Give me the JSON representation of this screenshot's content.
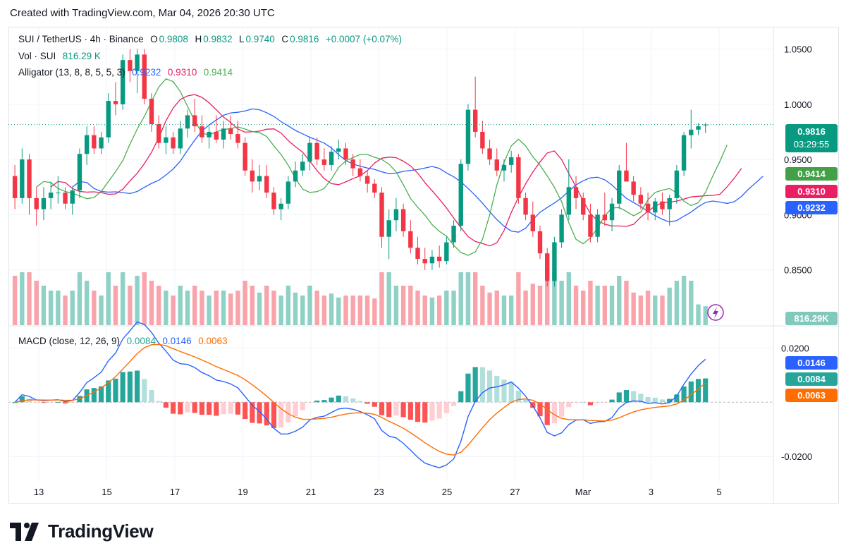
{
  "header": {
    "created": "Created with TradingView.com, Mar 04, 2026 20:30 UTC"
  },
  "legend": {
    "symbol": "SUI / TetherUS · 4h · Binance",
    "o_label": "O",
    "o": "0.9808",
    "h_label": "H",
    "h": "0.9832",
    "l_label": "L",
    "l": "0.9740",
    "c_label": "C",
    "c": "0.9816",
    "change": "+0.0007 (+0.07%)",
    "vol_label": "Vol · SUI",
    "vol": "816.29 K",
    "alligator_label": "Alligator (13, 8, 8, 5, 5, 3)",
    "alligator_jaw": "0.9232",
    "alligator_teeth": "0.9310",
    "alligator_lips": "0.9414",
    "macd_label": "MACD (close, 12, 26, 9)",
    "macd_hist": "0.0084",
    "macd_line": "0.0146",
    "macd_signal": "0.0063"
  },
  "badges": {
    "price": "0.9816",
    "countdown": "03:29:55",
    "lips": "0.9414",
    "teeth": "0.9310",
    "jaw": "0.9232",
    "volume": "816.29K",
    "macd_line": "0.0146",
    "macd_hist": "0.0084",
    "macd_signal": "0.0063"
  },
  "footer": {
    "brand": "TradingView"
  },
  "colors": {
    "up": "#089981",
    "down": "#f23645",
    "jaw": "#2962ff",
    "teeth": "#e91e63",
    "lips": "#4caf50",
    "signal": "#ff6d00"
  },
  "chart_data": {
    "type": "candlestick",
    "title": "SUI / TetherUS · 4h · Binance",
    "x_ticks": [
      "13",
      "15",
      "17",
      "19",
      "21",
      "23",
      "25",
      "27",
      "Mar",
      "3",
      "5"
    ],
    "y_ticks": [
      "1.0500",
      "1.0000",
      "0.9500",
      "0.9000",
      "0.8500"
    ],
    "ylim": [
      0.8,
      1.065
    ],
    "candles": [
      [
        0.935,
        0.945,
        0.905,
        0.915
      ],
      [
        0.915,
        0.96,
        0.91,
        0.95
      ],
      [
        0.95,
        0.955,
        0.9,
        0.915
      ],
      [
        0.915,
        0.925,
        0.89,
        0.905
      ],
      [
        0.905,
        0.925,
        0.895,
        0.915
      ],
      [
        0.915,
        0.93,
        0.905,
        0.92
      ],
      [
        0.92,
        0.935,
        0.91,
        0.92
      ],
      [
        0.92,
        0.925,
        0.905,
        0.91
      ],
      [
        0.91,
        0.925,
        0.9,
        0.922
      ],
      [
        0.922,
        0.96,
        0.915,
        0.955
      ],
      [
        0.955,
        0.98,
        0.945,
        0.972
      ],
      [
        0.972,
        0.98,
        0.955,
        0.96
      ],
      [
        0.96,
        0.975,
        0.955,
        0.97
      ],
      [
        0.97,
        1.01,
        0.965,
        1.003
      ],
      [
        1.003,
        1.02,
        0.99,
        1.0
      ],
      [
        1.0,
        1.045,
        0.995,
        1.04
      ],
      [
        1.04,
        1.05,
        1.02,
        1.03
      ],
      [
        1.03,
        1.05,
        1.01,
        1.045
      ],
      [
        1.045,
        1.05,
        1.0,
        1.005
      ],
      [
        1.005,
        1.01,
        0.975,
        0.982
      ],
      [
        0.982,
        0.99,
        0.96,
        0.965
      ],
      [
        0.965,
        0.98,
        0.955,
        0.97
      ],
      [
        0.97,
        0.975,
        0.955,
        0.96
      ],
      [
        0.96,
        0.985,
        0.955,
        0.978
      ],
      [
        0.978,
        0.995,
        0.97,
        0.99
      ],
      [
        0.99,
        1.005,
        0.975,
        0.98
      ],
      [
        0.98,
        0.99,
        0.965,
        0.97
      ],
      [
        0.97,
        0.98,
        0.96,
        0.975
      ],
      [
        0.975,
        0.99,
        0.965,
        0.968
      ],
      [
        0.968,
        0.985,
        0.96,
        0.978
      ],
      [
        0.978,
        0.99,
        0.968,
        0.973
      ],
      [
        0.973,
        0.985,
        0.96,
        0.965
      ],
      [
        0.965,
        0.97,
        0.935,
        0.94
      ],
      [
        0.94,
        0.95,
        0.92,
        0.93
      ],
      [
        0.93,
        0.945,
        0.922,
        0.935
      ],
      [
        0.935,
        0.945,
        0.915,
        0.92
      ],
      [
        0.92,
        0.925,
        0.9,
        0.905
      ],
      [
        0.905,
        0.915,
        0.895,
        0.91
      ],
      [
        0.91,
        0.935,
        0.905,
        0.93
      ],
      [
        0.93,
        0.948,
        0.925,
        0.94
      ],
      [
        0.94,
        0.955,
        0.935,
        0.948
      ],
      [
        0.948,
        0.97,
        0.94,
        0.965
      ],
      [
        0.965,
        0.97,
        0.945,
        0.95
      ],
      [
        0.95,
        0.96,
        0.94,
        0.945
      ],
      [
        0.945,
        0.962,
        0.94,
        0.957
      ],
      [
        0.957,
        0.968,
        0.95,
        0.96
      ],
      [
        0.96,
        0.965,
        0.945,
        0.95
      ],
      [
        0.95,
        0.955,
        0.935,
        0.942
      ],
      [
        0.942,
        0.95,
        0.93,
        0.935
      ],
      [
        0.935,
        0.94,
        0.92,
        0.928
      ],
      [
        0.928,
        0.932,
        0.915,
        0.92
      ],
      [
        0.92,
        0.925,
        0.87,
        0.88
      ],
      [
        0.88,
        0.905,
        0.86,
        0.895
      ],
      [
        0.895,
        0.915,
        0.885,
        0.905
      ],
      [
        0.905,
        0.91,
        0.88,
        0.885
      ],
      [
        0.885,
        0.895,
        0.865,
        0.87
      ],
      [
        0.87,
        0.88,
        0.855,
        0.86
      ],
      [
        0.86,
        0.87,
        0.85,
        0.856
      ],
      [
        0.856,
        0.868,
        0.85,
        0.862
      ],
      [
        0.862,
        0.872,
        0.852,
        0.858
      ],
      [
        0.858,
        0.88,
        0.855,
        0.875
      ],
      [
        0.875,
        0.895,
        0.87,
        0.89
      ],
      [
        0.89,
        0.95,
        0.885,
        0.946
      ],
      [
        0.946,
        1.0,
        0.94,
        0.995
      ],
      [
        0.995,
        1.025,
        0.97,
        0.975
      ],
      [
        0.975,
        0.985,
        0.955,
        0.96
      ],
      [
        0.96,
        0.968,
        0.945,
        0.95
      ],
      [
        0.95,
        0.96,
        0.935,
        0.94
      ],
      [
        0.94,
        0.95,
        0.93,
        0.945
      ],
      [
        0.945,
        0.958,
        0.938,
        0.952
      ],
      [
        0.952,
        0.955,
        0.91,
        0.915
      ],
      [
        0.915,
        0.92,
        0.895,
        0.9
      ],
      [
        0.9,
        0.912,
        0.88,
        0.885
      ],
      [
        0.885,
        0.89,
        0.86,
        0.865
      ],
      [
        0.865,
        0.87,
        0.835,
        0.84
      ],
      [
        0.84,
        0.88,
        0.835,
        0.875
      ],
      [
        0.875,
        0.905,
        0.87,
        0.9
      ],
      [
        0.9,
        0.95,
        0.895,
        0.925
      ],
      [
        0.925,
        0.935,
        0.905,
        0.915
      ],
      [
        0.915,
        0.92,
        0.895,
        0.9
      ],
      [
        0.9,
        0.91,
        0.875,
        0.88
      ],
      [
        0.88,
        0.905,
        0.875,
        0.9
      ],
      [
        0.9,
        0.92,
        0.89,
        0.895
      ],
      [
        0.895,
        0.915,
        0.885,
        0.91
      ],
      [
        0.91,
        0.945,
        0.905,
        0.94
      ],
      [
        0.94,
        0.965,
        0.93,
        0.93
      ],
      [
        0.93,
        0.935,
        0.912,
        0.918
      ],
      [
        0.918,
        0.925,
        0.905,
        0.91
      ],
      [
        0.91,
        0.92,
        0.895,
        0.902
      ],
      [
        0.902,
        0.915,
        0.895,
        0.912
      ],
      [
        0.912,
        0.92,
        0.9,
        0.905
      ],
      [
        0.905,
        0.918,
        0.89,
        0.915
      ],
      [
        0.915,
        0.945,
        0.91,
        0.94
      ],
      [
        0.94,
        0.975,
        0.935,
        0.972
      ],
      [
        0.972,
        0.995,
        0.96,
        0.977
      ],
      [
        0.977,
        0.983,
        0.972,
        0.98
      ],
      [
        0.9808,
        0.9832,
        0.974,
        0.9816
      ]
    ],
    "volume_series": "Vol · SUI (relative heights)",
    "macd": {
      "line": 0.0146,
      "signal": 0.0063,
      "histogram": 0.0084,
      "y_ticks": [
        "0.0200",
        "-0.0200"
      ]
    }
  }
}
